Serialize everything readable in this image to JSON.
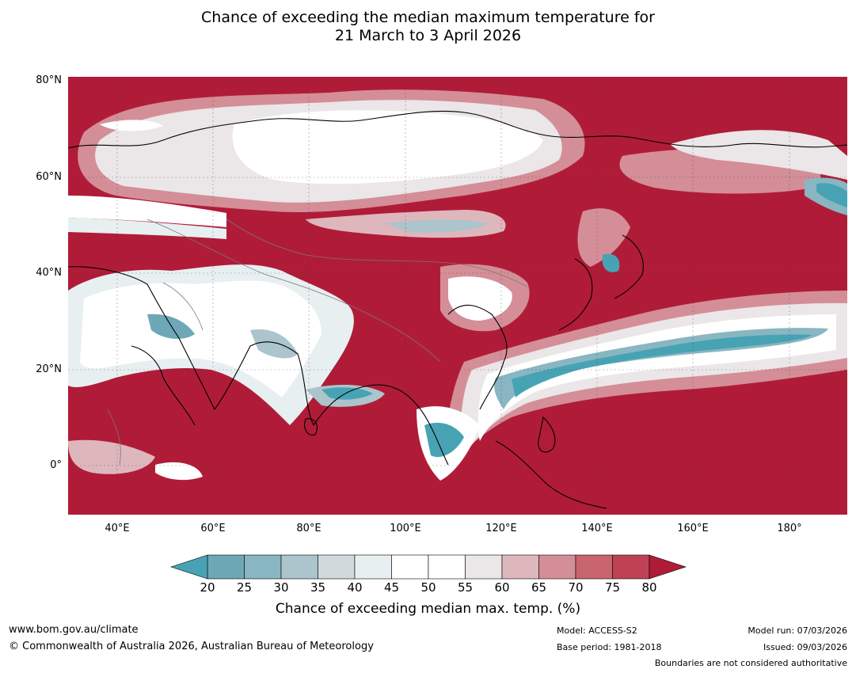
{
  "title": {
    "line1": "Chance of exceeding the median maximum temperature for",
    "line2": "21 March to 3 April 2026"
  },
  "map": {
    "lat_labels": [
      "80°N",
      "60°N",
      "40°N",
      "20°N",
      "0°"
    ],
    "lon_labels": [
      "40°E",
      "60°E",
      "80°E",
      "100°E",
      "120°E",
      "140°E",
      "160°E",
      "180°"
    ],
    "background_color": "#b01c38"
  },
  "colorbar": {
    "ticks": [
      "20",
      "25",
      "30",
      "35",
      "40",
      "45",
      "50",
      "55",
      "60",
      "65",
      "70",
      "75",
      "80"
    ],
    "colors": [
      "#6ea8b6",
      "#88b6c2",
      "#acc4cb",
      "#d2d9dc",
      "#e8eff1",
      "#ffffff",
      "#ffffff",
      "#ebe6e7",
      "#deb7bd",
      "#d48e98",
      "#c9656f",
      "#be4253"
    ],
    "under_color": "#47a3b4",
    "over_color": "#b01c38",
    "label": "Chance of exceeding median max. temp. (%)"
  },
  "footer": {
    "website": "www.bom.gov.au/climate",
    "copyright": "© Commonwealth of Australia 2026, Australian Bureau of Meteorology",
    "model": "Model: ACCESS-S2",
    "base_period": "Base period: 1981-2018",
    "model_run": "Model run: 07/03/2026",
    "issued": "Issued: 09/03/2026",
    "disclaimer": "Boundaries are not considered authoritative"
  }
}
